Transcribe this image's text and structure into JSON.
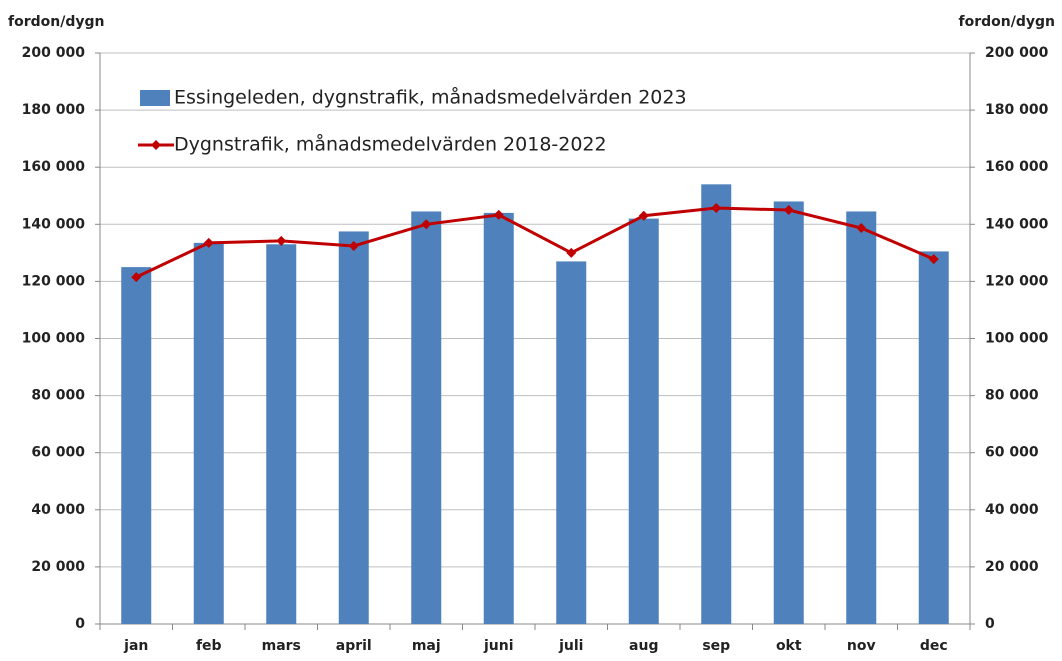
{
  "chart_data": {
    "type": "bar-line",
    "ylabel": "fordon/dygn",
    "y2label": "fordon/dygn",
    "categories": [
      "jan",
      "feb",
      "mars",
      "april",
      "maj",
      "juni",
      "juli",
      "aug",
      "sep",
      "okt",
      "nov",
      "dec"
    ],
    "series": [
      {
        "name": "Essingeleden, dygnstrafik, månadsmedelvärden 2023",
        "type": "bar",
        "color": "#4f81bd",
        "values": [
          125000,
          133500,
          133000,
          137500,
          144500,
          144000,
          127000,
          142000,
          154000,
          148000,
          144500,
          130500
        ]
      },
      {
        "name": "Dygnstrafik, månadsmedelvärden 2018-2022",
        "type": "line",
        "color": "#c00000",
        "axis": "y2",
        "values": [
          121500,
          133500,
          134200,
          132400,
          140000,
          143300,
          130000,
          143000,
          145700,
          145000,
          138700,
          127800
        ]
      }
    ],
    "ylim": [
      0,
      200000
    ],
    "yticks": [
      {
        "value": 0,
        "label": "0"
      },
      {
        "value": 20000,
        "label": "20 000"
      },
      {
        "value": 40000,
        "label": "40 000"
      },
      {
        "value": 60000,
        "label": "60 000"
      },
      {
        "value": 80000,
        "label": "80 000"
      },
      {
        "value": 100000,
        "label": "100 000"
      },
      {
        "value": 120000,
        "label": "120 000"
      },
      {
        "value": 140000,
        "label": "140 000"
      },
      {
        "value": 160000,
        "label": "160 000"
      },
      {
        "value": 180000,
        "label": "180 000"
      },
      {
        "value": 200000,
        "label": "200 000"
      }
    ],
    "y2lim": [
      0,
      200000
    ],
    "y2ticks": [
      {
        "value": 0,
        "label": "0"
      },
      {
        "value": 20000,
        "label": "20 000"
      },
      {
        "value": 40000,
        "label": "40 000"
      },
      {
        "value": 60000,
        "label": "60 000"
      },
      {
        "value": 80000,
        "label": "80 000"
      },
      {
        "value": 100000,
        "label": "100 000"
      },
      {
        "value": 120000,
        "label": "120 000"
      },
      {
        "value": 140000,
        "label": "140 000"
      },
      {
        "value": 160000,
        "label": "160 000"
      },
      {
        "value": 180000,
        "label": "180 000"
      },
      {
        "value": 200000,
        "label": "200 000"
      }
    ],
    "grid": true,
    "legend": "top-left"
  }
}
